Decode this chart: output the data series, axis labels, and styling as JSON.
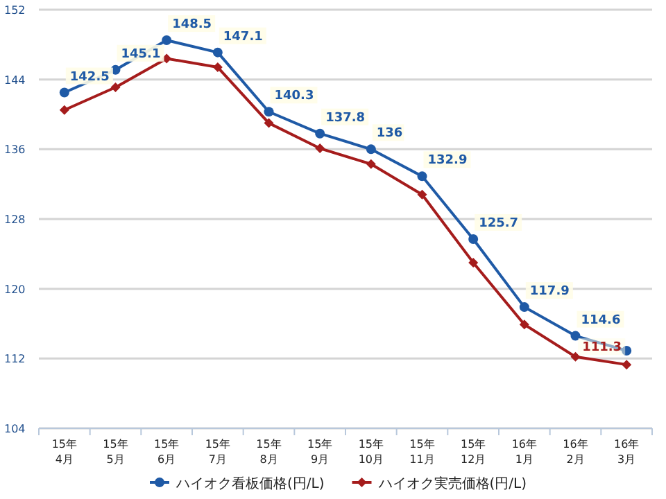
{
  "chart_data": {
    "type": "line",
    "categories": [
      "15年\n4月",
      "15年\n5月",
      "15年\n6月",
      "15年\n7月",
      "15年\n8月",
      "15年\n9月",
      "15年\n10月",
      "15年\n11月",
      "15年\n12月",
      "16年\n1月",
      "16年\n2月",
      "16年\n3月"
    ],
    "series": [
      {
        "name": "ハイオク看板価格(円/L)",
        "color": "#1f5aa6",
        "marker": "circle",
        "values": [
          142.5,
          145.1,
          148.5,
          147.1,
          140.3,
          137.8,
          136,
          132.9,
          125.7,
          117.9,
          114.6,
          112.9
        ],
        "value_labels": [
          "142.5",
          "145.1",
          "148.5",
          "147.1",
          "140.3",
          "137.8",
          "136",
          "132.9",
          "125.7",
          "117.9",
          "114.6",
          null
        ]
      },
      {
        "name": "ハイオク実売価格(円/L)",
        "color": "#a51c1c",
        "marker": "diamond",
        "values": [
          140.5,
          143.1,
          146.4,
          145.4,
          139.0,
          136.1,
          134.3,
          130.8,
          123.0,
          115.9,
          112.2,
          111.3
        ],
        "value_labels": [
          null,
          null,
          null,
          null,
          null,
          null,
          null,
          null,
          null,
          null,
          null,
          "111.3"
        ]
      }
    ],
    "ylim": [
      104,
      152
    ],
    "yticks": [
      104,
      112,
      120,
      128,
      136,
      144,
      152
    ],
    "grid": "y",
    "legend": "bottom"
  }
}
